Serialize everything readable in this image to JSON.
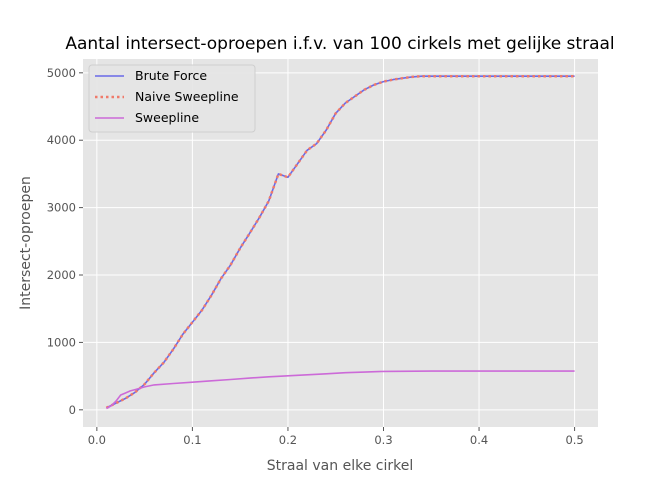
{
  "chart_data": {
    "type": "line",
    "title": "Aantal intersect-oproepen i.f.v. van 100 cirkels met gelijke straal",
    "xlabel": "Straal van elke cirkel",
    "ylabel": "Intersect-oproepen",
    "xlim": [
      -0.0145,
      0.5245
    ],
    "ylim": [
      -255,
      5205
    ],
    "xticks": [
      0.0,
      0.1,
      0.2,
      0.3,
      0.4,
      0.5
    ],
    "xtick_labels": [
      "0.0",
      "0.1",
      "0.2",
      "0.3",
      "0.4",
      "0.5"
    ],
    "yticks": [
      0,
      1000,
      2000,
      3000,
      4000,
      5000
    ],
    "ytick_labels": [
      "0",
      "1000",
      "2000",
      "3000",
      "4000",
      "5000"
    ],
    "grid": true,
    "legend_position": "top-left",
    "style": {
      "background": "#e5e5e5",
      "grid_color": "#ffffff",
      "text_color": "#555555",
      "title_color": "#000000"
    },
    "series": [
      {
        "name": "Brute Force",
        "color": "#6a6ae8",
        "dash": "solid",
        "x": [
          0.01,
          0.02,
          0.03,
          0.04,
          0.05,
          0.06,
          0.07,
          0.08,
          0.09,
          0.1,
          0.11,
          0.12,
          0.13,
          0.14,
          0.15,
          0.16,
          0.17,
          0.18,
          0.19,
          0.2,
          0.21,
          0.22,
          0.23,
          0.24,
          0.25,
          0.26,
          0.27,
          0.28,
          0.29,
          0.3,
          0.31,
          0.32,
          0.33,
          0.34,
          0.35,
          0.4,
          0.45,
          0.5
        ],
        "y": [
          30,
          100,
          170,
          260,
          380,
          550,
          700,
          900,
          1120,
          1300,
          1480,
          1700,
          1950,
          2150,
          2400,
          2620,
          2850,
          3100,
          3500,
          3450,
          3650,
          3850,
          3950,
          4150,
          4400,
          4550,
          4650,
          4750,
          4820,
          4870,
          4900,
          4920,
          4940,
          4950,
          4950,
          4950,
          4950,
          4950
        ]
      },
      {
        "name": "Naive Sweepline",
        "color": "#f07a6a",
        "dash": "dotted",
        "x": [
          0.01,
          0.02,
          0.03,
          0.04,
          0.05,
          0.06,
          0.07,
          0.08,
          0.09,
          0.1,
          0.11,
          0.12,
          0.13,
          0.14,
          0.15,
          0.16,
          0.17,
          0.18,
          0.19,
          0.2,
          0.21,
          0.22,
          0.23,
          0.24,
          0.25,
          0.26,
          0.27,
          0.28,
          0.29,
          0.3,
          0.31,
          0.32,
          0.33,
          0.34,
          0.35,
          0.4,
          0.45,
          0.5
        ],
        "y": [
          30,
          100,
          170,
          260,
          380,
          550,
          700,
          900,
          1120,
          1300,
          1480,
          1700,
          1950,
          2150,
          2400,
          2620,
          2850,
          3100,
          3500,
          3450,
          3650,
          3850,
          3950,
          4150,
          4400,
          4550,
          4650,
          4750,
          4820,
          4870,
          4900,
          4920,
          4940,
          4950,
          4950,
          4950,
          4950,
          4950
        ]
      },
      {
        "name": "Sweepline",
        "color": "#cc6ad8",
        "dash": "solid",
        "x": [
          0.01,
          0.015,
          0.02,
          0.025,
          0.03,
          0.035,
          0.04,
          0.05,
          0.06,
          0.08,
          0.1,
          0.12,
          0.14,
          0.16,
          0.18,
          0.2,
          0.22,
          0.24,
          0.26,
          0.28,
          0.3,
          0.35,
          0.4,
          0.45,
          0.5
        ],
        "y": [
          20,
          60,
          130,
          220,
          250,
          280,
          300,
          340,
          370,
          390,
          410,
          430,
          450,
          470,
          490,
          505,
          520,
          535,
          550,
          560,
          570,
          575,
          575,
          575,
          575
        ]
      }
    ]
  }
}
